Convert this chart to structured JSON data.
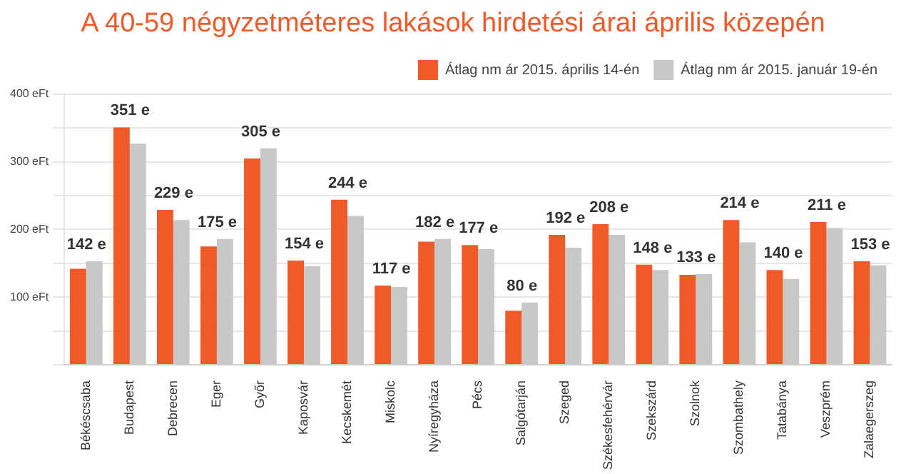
{
  "chart_data": {
    "type": "bar",
    "title": "A 40-59 négyzetméteres lakások hirdetési árai április közepén",
    "categories": [
      "Békéscsaba",
      "Budapest",
      "Debrecen",
      "Eger",
      "Győr",
      "Kaposvár",
      "Kecskemét",
      "Miskolc",
      "Nyíregyháza",
      "Pécs",
      "Salgótarján",
      "Szeged",
      "Székesfehérvár",
      "Szekszárd",
      "Szolnok",
      "Szombathely",
      "Tatabánya",
      "Veszprém",
      "Zalaegerszeg"
    ],
    "series": [
      {
        "name": "Átlag nm ár 2015. április 14-én",
        "color": "#f05a28",
        "values": [
          142,
          351,
          229,
          175,
          305,
          154,
          244,
          117,
          182,
          177,
          80,
          192,
          208,
          148,
          133,
          214,
          140,
          211,
          153
        ],
        "value_labels": [
          "142 e",
          "351 e",
          "229 e",
          "175 e",
          "305 e",
          "154 e",
          "244 e",
          "117 e",
          "182 e",
          "177 e",
          "80 e",
          "192 e",
          "208 e",
          "148 e",
          "133 e",
          "214 e",
          "140 e",
          "211 e",
          "153 e"
        ]
      },
      {
        "name": "Átlag nm ár 2015. január 19-én",
        "color": "#c8c8c8",
        "values": [
          153,
          327,
          214,
          186,
          320,
          146,
          220,
          115,
          186,
          171,
          92,
          173,
          192,
          140,
          134,
          181,
          127,
          202,
          147
        ]
      }
    ],
    "ylim": [
      0,
      400
    ],
    "yticks": [
      {
        "value": 0,
        "label": null
      },
      {
        "value": 50,
        "label": null
      },
      {
        "value": 100,
        "label": "100 eFt"
      },
      {
        "value": 150,
        "label": null
      },
      {
        "value": 200,
        "label": "200 eFt"
      },
      {
        "value": 250,
        "label": null
      },
      {
        "value": 300,
        "label": "300 eFt"
      },
      {
        "value": 350,
        "label": null
      },
      {
        "value": 400,
        "label": "400 eFt"
      }
    ],
    "grid": "y",
    "legend": "top right"
  }
}
